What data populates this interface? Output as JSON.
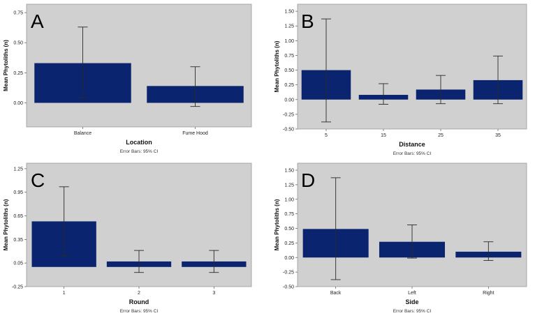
{
  "chart_data": [
    {
      "panel": "A",
      "type": "bar",
      "categories": [
        "Balance",
        "Fume Hood"
      ],
      "values": [
        0.33,
        0.14
      ],
      "error_low": [
        0.04,
        -0.03
      ],
      "error_high": [
        0.63,
        0.3
      ],
      "xlabel": "Location",
      "ylabel": "Mean Phytoliths (n)",
      "note": "Error Bars: 95% CI",
      "yticks": [
        "0.00",
        "0.25",
        "0.50",
        "0.75"
      ],
      "ylim": [
        -0.2,
        0.82
      ],
      "bar_color": "#0b2470",
      "plot_bg": "#d0d0d0",
      "grid": false
    },
    {
      "panel": "B",
      "type": "bar",
      "categories": [
        "5",
        "15",
        "25",
        "35"
      ],
      "values": [
        0.5,
        0.08,
        0.17,
        0.33
      ],
      "error_low": [
        -0.38,
        -0.08,
        -0.07,
        -0.07
      ],
      "error_high": [
        1.37,
        0.27,
        0.41,
        0.74
      ],
      "xlabel": "Distance",
      "ylabel": "Mean Phytoliths (n)",
      "note": "Error Bars: 95% CI",
      "yticks": [
        "-0.50",
        "-0.25",
        "0.00",
        "0.25",
        "0.50",
        "0.75",
        "1.00",
        "1.25",
        "1.50"
      ],
      "ylim": [
        -0.5,
        1.62
      ],
      "bar_color": "#0b2470",
      "plot_bg": "#d0d0d0",
      "grid": false
    },
    {
      "panel": "C",
      "type": "bar",
      "categories": [
        "1",
        "2",
        "3"
      ],
      "values": [
        0.58,
        0.07,
        0.07
      ],
      "error_low": [
        0.14,
        -0.07,
        -0.07
      ],
      "error_high": [
        1.02,
        0.21,
        0.21
      ],
      "xlabel": "Round",
      "ylabel": "Mean Phytoliths (n)",
      "note": "Error Bars: 95% CI",
      "yticks": [
        "-0.25",
        "0.05",
        "0.35",
        "0.65",
        "0.95",
        "1.25"
      ],
      "ylim": [
        -0.25,
        1.32
      ],
      "bar_color": "#0b2470",
      "plot_bg": "#d0d0d0",
      "grid": false
    },
    {
      "panel": "D",
      "type": "bar",
      "categories": [
        "Back",
        "Left",
        "Right"
      ],
      "values": [
        0.49,
        0.27,
        0.1
      ],
      "error_low": [
        -0.38,
        -0.01,
        -0.05
      ],
      "error_high": [
        1.37,
        0.56,
        0.27
      ],
      "xlabel": "Side",
      "ylabel": "Mean Phytoliths (n)",
      "note": "Error Bars: 95% CI",
      "yticks": [
        "-0.50",
        "-0.25",
        "0.00",
        "0.25",
        "0.50",
        "0.75",
        "1.00",
        "1.25",
        "1.50"
      ],
      "ylim": [
        -0.5,
        1.62
      ],
      "bar_color": "#0b2470",
      "plot_bg": "#d0d0d0",
      "grid": false
    }
  ]
}
